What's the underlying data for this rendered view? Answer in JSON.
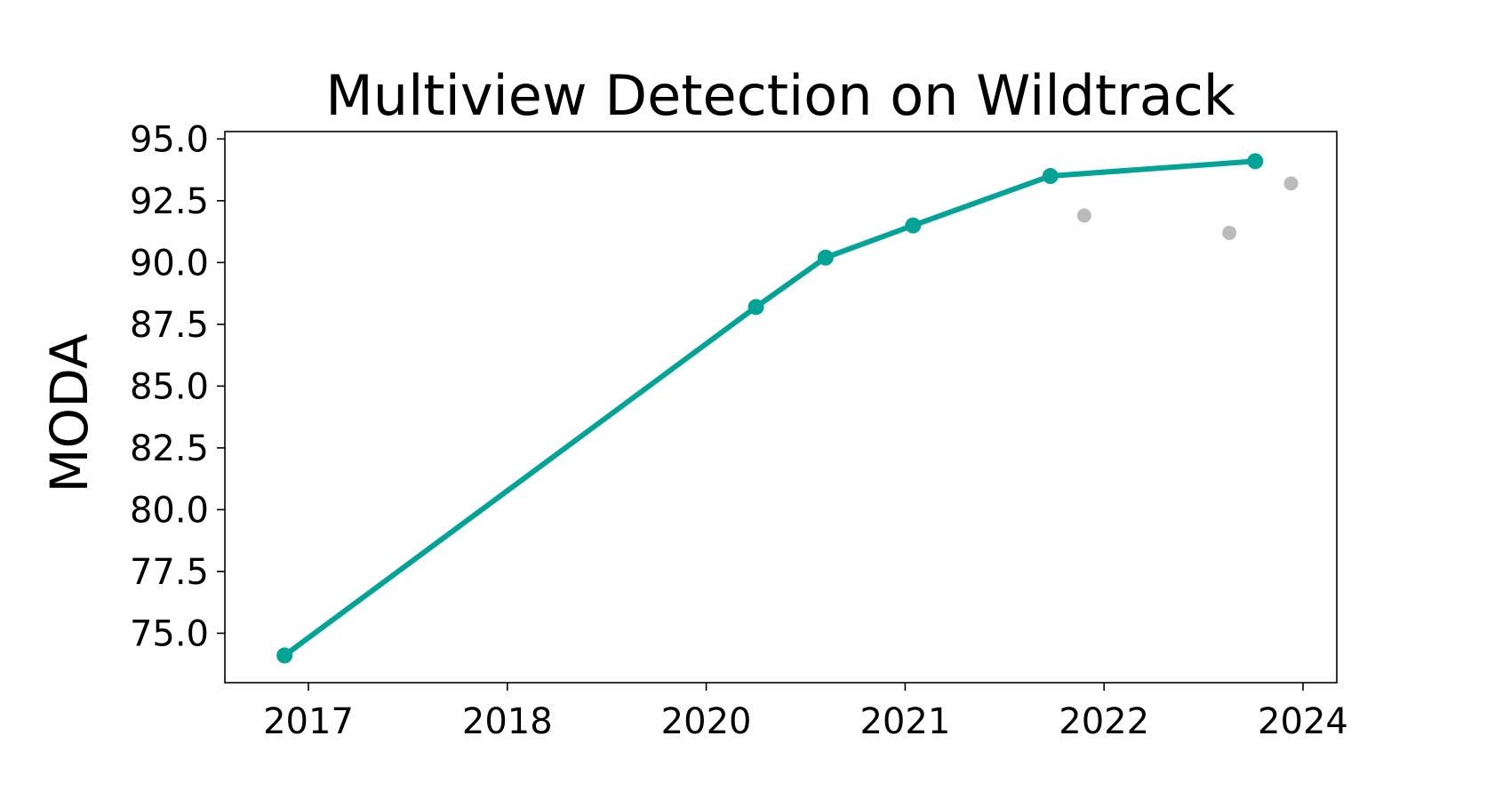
{
  "chart_data": {
    "type": "line",
    "title": "Multiview Detection on Wildtrack",
    "xlabel": "",
    "ylabel": "MODA",
    "x_ticks": [
      {
        "label": "2017",
        "pos": 2017
      },
      {
        "label": "2018",
        "pos": 2018
      },
      {
        "label": "2020",
        "pos": 2019
      },
      {
        "label": "2021",
        "pos": 2020
      },
      {
        "label": "2022",
        "pos": 2021
      },
      {
        "label": "2024",
        "pos": 2022
      }
    ],
    "y_ticks": [
      "75.0",
      "77.5",
      "80.0",
      "82.5",
      "85.0",
      "87.5",
      "90.0",
      "92.5",
      "95.0"
    ],
    "xlim": [
      2016.58,
      2022.17
    ],
    "ylim": [
      73.0,
      95.3
    ],
    "grid": false,
    "legend": "none",
    "series": [
      {
        "kind": "line",
        "color": "#00a396",
        "points": [
          {
            "x": 2016.88,
            "y": 74.1
          },
          {
            "x": 2019.25,
            "y": 88.2
          },
          {
            "x": 2019.6,
            "y": 90.2
          },
          {
            "x": 2020.04,
            "y": 91.5
          },
          {
            "x": 2020.73,
            "y": 93.5
          },
          {
            "x": 2021.76,
            "y": 94.1
          }
        ]
      },
      {
        "kind": "scatter",
        "color": "#bbbbbb",
        "points": [
          {
            "x": 2020.9,
            "y": 91.9
          },
          {
            "x": 2021.63,
            "y": 91.2
          },
          {
            "x": 2021.94,
            "y": 93.2
          }
        ]
      }
    ]
  }
}
